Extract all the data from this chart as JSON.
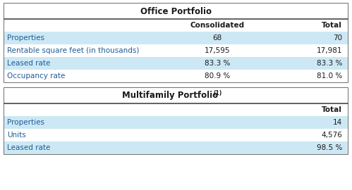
{
  "office_title": "Office Portfolio",
  "office_headers": [
    "",
    "Consolidated",
    "Total"
  ],
  "office_rows": [
    [
      "Properties",
      "68",
      "70"
    ],
    [
      "Rentable square feet (in thousands)",
      "17,595",
      "17,981"
    ],
    [
      "Leased rate",
      "83.3 %",
      "83.3 %"
    ],
    [
      "Occupancy rate",
      "80.9 %",
      "81.0 %"
    ]
  ],
  "multi_headers": [
    "",
    "Total"
  ],
  "multi_rows": [
    [
      "Properties",
      "14"
    ],
    [
      "Units",
      "4,576"
    ],
    [
      "Leased rate",
      "98.5 %"
    ]
  ],
  "row_alt_bg": "#cce8f4",
  "row_white_bg": "#ffffff",
  "title_bg": "#ffffff",
  "border_color": "#555555",
  "text_blue": "#1f5c99",
  "text_black": "#1a1a1a",
  "font_size": 7.5,
  "title_font_size": 8.5,
  "header_font_size": 7.5
}
